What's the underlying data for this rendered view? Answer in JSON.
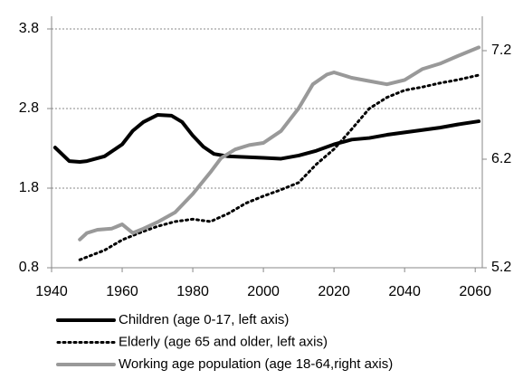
{
  "chart_data": {
    "type": "line",
    "xlim": [
      1940,
      2062
    ],
    "xticks": [
      1940,
      1960,
      1980,
      2000,
      2020,
      2040,
      2060
    ],
    "ylim": [
      0.8,
      3.8
    ],
    "yticks": [
      0.8,
      1.8,
      2.8,
      3.8
    ],
    "y2lim": [
      5.2,
      7.4
    ],
    "y2ticks": [
      5.2,
      6.2,
      7.2
    ],
    "grid": true,
    "series": [
      {
        "name": "Children (age 0-17, left axis)",
        "color": "#000000",
        "dash": "solid",
        "x": [
          1941,
          1945,
          1948,
          1950,
          1955,
          1960,
          1963,
          1966,
          1970,
          1974,
          1977,
          1980,
          1983,
          1986,
          1990,
          2000,
          2005,
          2010,
          2015,
          2020,
          2025,
          2030,
          2035,
          2040,
          2045,
          2050,
          2055,
          2061
        ],
        "values": [
          2.31,
          2.14,
          2.13,
          2.14,
          2.2,
          2.35,
          2.52,
          2.63,
          2.72,
          2.71,
          2.63,
          2.46,
          2.32,
          2.23,
          2.2,
          2.18,
          2.17,
          2.21,
          2.27,
          2.35,
          2.41,
          2.43,
          2.47,
          2.5,
          2.53,
          2.56,
          2.6,
          2.64
        ]
      },
      {
        "name": "Elderly (age 65 and older, left axis)",
        "color": "#000000",
        "dash": "dotted",
        "x": [
          1948,
          1955,
          1960,
          1965,
          1970,
          1975,
          1980,
          1985,
          1990,
          1995,
          2000,
          2005,
          2010,
          2015,
          2020,
          2025,
          2030,
          2035,
          2040,
          2045,
          2050,
          2055,
          2061
        ],
        "values": [
          0.9,
          1.02,
          1.15,
          1.24,
          1.32,
          1.38,
          1.41,
          1.38,
          1.48,
          1.61,
          1.7,
          1.78,
          1.87,
          2.1,
          2.29,
          2.54,
          2.8,
          2.94,
          3.03,
          3.07,
          3.12,
          3.16,
          3.22
        ]
      },
      {
        "name": "Working age population (age 18-64,right axis)",
        "color": "#999999",
        "dash": "solid",
        "axis": "y2",
        "x": [
          1948,
          1950,
          1953,
          1957,
          1960,
          1963,
          1966,
          1970,
          1975,
          1980,
          1985,
          1988,
          1992,
          1996,
          2000,
          2005,
          2010,
          2014,
          2018,
          2020,
          2025,
          2030,
          2035,
          2040,
          2045,
          2050,
          2055,
          2061
        ],
        "values": [
          5.46,
          5.52,
          5.55,
          5.56,
          5.6,
          5.52,
          5.56,
          5.62,
          5.71,
          5.88,
          6.08,
          6.21,
          6.29,
          6.33,
          6.35,
          6.46,
          6.67,
          6.89,
          6.98,
          7.0,
          6.95,
          6.92,
          6.89,
          6.93,
          7.03,
          7.08,
          7.15,
          7.23
        ]
      }
    ]
  }
}
